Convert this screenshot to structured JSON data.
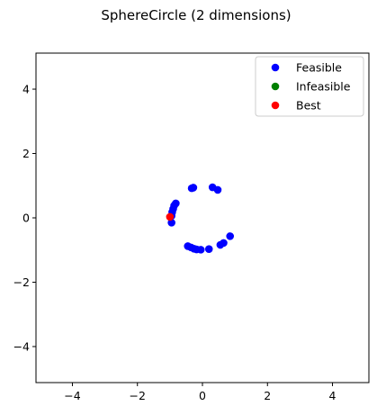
{
  "chart_data": {
    "type": "scatter",
    "title": "SphereCircle (2 dimensions)",
    "xlabel": "",
    "ylabel": "",
    "xlim": [
      -5.12,
      5.12
    ],
    "ylim": [
      -5.12,
      5.12
    ],
    "xticks": [
      -4,
      -2,
      0,
      2,
      4
    ],
    "yticks": [
      -4,
      -2,
      0,
      2,
      4
    ],
    "xtick_labels": [
      "−4",
      "−2",
      "0",
      "2",
      "4"
    ],
    "ytick_labels": [
      "−4",
      "−2",
      "0",
      "2",
      "4"
    ],
    "grid": false,
    "legend_position": "top-right",
    "series": [
      {
        "name": "Feasible",
        "color": "#0000ff",
        "points": [
          [
            -0.82,
            0.45
          ],
          [
            -0.87,
            0.38
          ],
          [
            -0.9,
            0.28
          ],
          [
            -0.93,
            0.18
          ],
          [
            -0.95,
            0.06
          ],
          [
            -0.95,
            -0.15
          ],
          [
            -0.33,
            0.92
          ],
          [
            -0.28,
            0.94
          ],
          [
            0.31,
            0.95
          ],
          [
            0.47,
            0.87
          ],
          [
            -0.45,
            -0.88
          ],
          [
            -0.35,
            -0.92
          ],
          [
            -0.26,
            -0.96
          ],
          [
            -0.18,
            -0.98
          ],
          [
            -0.05,
            -0.99
          ],
          [
            0.2,
            -0.97
          ],
          [
            0.55,
            -0.84
          ],
          [
            0.65,
            -0.78
          ],
          [
            0.85,
            -0.57
          ]
        ]
      },
      {
        "name": "Infeasible",
        "color": "#008000",
        "points": []
      },
      {
        "name": "Best",
        "color": "#ff0000",
        "points": [
          [
            -1.0,
            0.03
          ]
        ]
      }
    ]
  }
}
